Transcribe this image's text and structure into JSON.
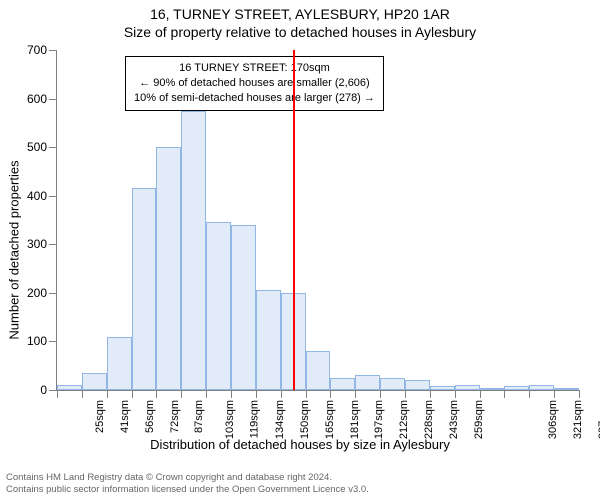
{
  "header": {
    "address": "16, TURNEY STREET, AYLESBURY, HP20 1AR",
    "subtitle": "Size of property relative to detached houses in Aylesbury"
  },
  "chart": {
    "type": "histogram",
    "ylabel": "Number of detached properties",
    "xlabel": "Distribution of detached houses by size in Aylesbury",
    "ylim": [
      0,
      700
    ],
    "ytick_step": 100,
    "yticks": [
      0,
      100,
      200,
      300,
      400,
      500,
      600,
      700
    ],
    "background_color": "#ffffff",
    "axis_color": "#808080",
    "bar_fill": "#e2ecf8",
    "bar_border": "#93b7e4",
    "reference_line": {
      "x_index": 9.5,
      "color": "#ff0000"
    },
    "annotation": {
      "line1": "16 TURNEY STREET: 170sqm",
      "line2": "← 90% of detached houses are smaller (2,606)",
      "line3": "10% of semi-detached houses are larger (278) →",
      "border_color": "#000000",
      "fontsize": 11
    },
    "x_categories": [
      "25sqm",
      "41sqm",
      "56sqm",
      "72sqm",
      "87sqm",
      "103sqm",
      "119sqm",
      "134sqm",
      "150sqm",
      "165sqm",
      "181sqm",
      "197sqm",
      "212sqm",
      "228sqm",
      "243sqm",
      "259sqm",
      "",
      "",
      "306sqm",
      "321sqm",
      "337sqm"
    ],
    "values": [
      10,
      35,
      110,
      415,
      500,
      575,
      345,
      340,
      205,
      200,
      80,
      25,
      30,
      25,
      20,
      8,
      10,
      3,
      8,
      10,
      2
    ],
    "bar_width_ratio": 1.0,
    "label_fontsize": 12,
    "tick_fontsize": 11
  },
  "footer": {
    "line1": "Contains HM Land Registry data © Crown copyright and database right 2024.",
    "line2": "Contains public sector information licensed under the Open Government Licence v3.0."
  }
}
